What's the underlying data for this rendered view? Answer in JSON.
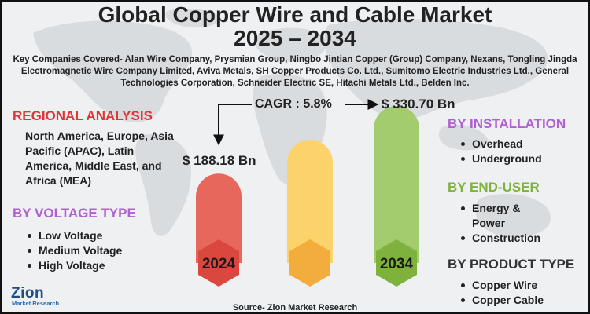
{
  "title": {
    "line1": "Global Copper Wire and Cable Market",
    "line2": "2025 – 2034"
  },
  "companies_text": "Key Companies Covered- Alan Wire Company, Prysmian Group, Ningbo Jintian Copper (Group) Company, Nexans, Tongling Jingda Electromagnetic Wire Company Limited, Aviva Metals, SH Copper Products Co. Ltd., Sumitomo Electric Industries Ltd., General Technologies Corporation, Schneider Electric SE, Hitachi Metals Ltd., Belden Inc.",
  "regional": {
    "heading": "REGIONAL ANALYSIS",
    "text": "North America, Europe, Asia Pacific (APAC), Latin America, Middle East, and Africa (MEA)"
  },
  "voltage": {
    "heading": "BY VOLTAGE TYPE",
    "items": [
      "Low Voltage",
      "Medium Voltage",
      "High Voltage"
    ]
  },
  "installation": {
    "heading": "BY INSTALLATION",
    "items": [
      "Overhead",
      "Underground"
    ]
  },
  "end_user": {
    "heading": "BY END-USER",
    "items": [
      "Energy & Power",
      "Construction"
    ]
  },
  "product": {
    "heading": "BY PRODUCT TYPE",
    "items": [
      "Copper Wire",
      "Copper Cable"
    ]
  },
  "cagr_text": "CAGR : 5.8%",
  "source_text": "Source- Zion Market Research",
  "logo": {
    "word": "Zion",
    "sub": "Market.Research."
  },
  "colors": {
    "red": "#e8675d",
    "red_hex": "#d9473f",
    "yellow": "#fbd36a",
    "yellow_hex": "#f2ad3c",
    "green": "#a3cc6e",
    "green_hex": "#7fb13d",
    "regional_head": "#e03535",
    "purple_head": "#b060d0",
    "green_head": "#7fb13d",
    "logo_blue": "#1c4f8a"
  },
  "chart_data": {
    "type": "bar",
    "title": "Global Copper Wire and Cable Market 2025 – 2034",
    "categories": [
      "2024",
      "",
      "2034"
    ],
    "values": [
      188.18,
      null,
      330.7
    ],
    "value_labels": [
      "$ 188.18 Bn",
      "",
      "$ 330.70 Bn"
    ],
    "unit": "USD Bn",
    "cagr": "5.8%",
    "note": "Middle bar is an unlabeled intermediate (illustrative) bar with no stated value."
  }
}
